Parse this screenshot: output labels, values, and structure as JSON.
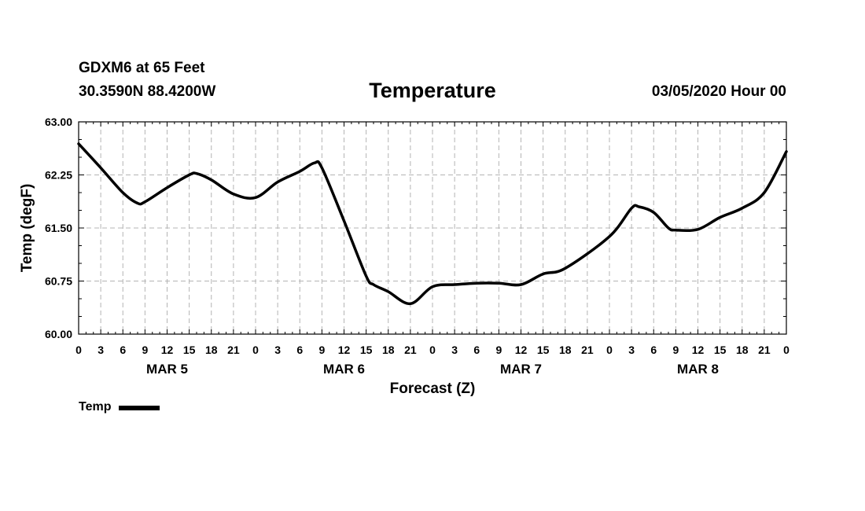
{
  "header": {
    "station": "GDXM6 at 65 Feet",
    "coordinates": "30.3590N 88.4200W",
    "date": "03/05/2020 Hour 00"
  },
  "legend": {
    "label": "Temp"
  },
  "colors": {
    "line": "#000000",
    "grid": "#b4b4b4",
    "axis": "#000000"
  },
  "chart_data": {
    "type": "line",
    "title": "Temperature",
    "xlabel": "Forecast (Z)",
    "ylabel": "Temp (degF)",
    "ylim": [
      60.0,
      63.0
    ],
    "xlim": [
      0,
      96
    ],
    "y_ticks": [
      "60.00",
      "60.75",
      "61.50",
      "62.25",
      "63.00"
    ],
    "x_tick_labels": [
      "0",
      "3",
      "6",
      "9",
      "12",
      "15",
      "18",
      "21",
      "0",
      "3",
      "6",
      "9",
      "12",
      "15",
      "18",
      "21",
      "0",
      "3",
      "6",
      "9",
      "12",
      "15",
      "18",
      "21",
      "0",
      "3",
      "6",
      "9",
      "12",
      "15",
      "18",
      "21",
      "0"
    ],
    "day_labels": [
      {
        "label": "MAR 5",
        "hour": 12
      },
      {
        "label": "MAR 6",
        "hour": 36
      },
      {
        "label": "MAR 7",
        "hour": 60
      },
      {
        "label": "MAR 8",
        "hour": 84
      }
    ],
    "grid": true,
    "series": [
      {
        "name": "Temp",
        "x": [
          0,
          3,
          6,
          8,
          9,
          12,
          15,
          16,
          18,
          21,
          24,
          27,
          30,
          32,
          33,
          36,
          39,
          40,
          42,
          45,
          48,
          51,
          54,
          57,
          60,
          63,
          66,
          72,
          75,
          76,
          78,
          80,
          81,
          84,
          87,
          90,
          93,
          96
        ],
        "values": [
          62.69,
          62.35,
          62.0,
          61.85,
          61.87,
          62.07,
          62.25,
          62.27,
          62.18,
          61.98,
          61.93,
          62.15,
          62.3,
          62.42,
          62.35,
          61.6,
          60.82,
          60.7,
          60.6,
          60.43,
          60.67,
          60.7,
          60.72,
          60.72,
          60.7,
          60.85,
          60.93,
          61.38,
          61.78,
          61.8,
          61.72,
          61.5,
          61.47,
          61.48,
          61.65,
          61.78,
          62.0,
          62.58
        ]
      }
    ]
  }
}
